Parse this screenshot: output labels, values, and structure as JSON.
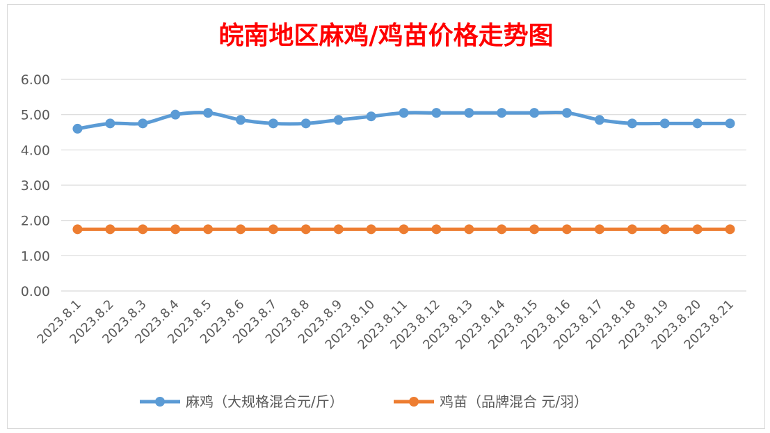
{
  "chart_data": {
    "type": "line",
    "title": "皖南地区麻鸡/鸡苗价格走势图",
    "categories": [
      "2023.8.1",
      "2023.8.2",
      "2023.8.3",
      "2023.8.4",
      "2023.8.5",
      "2023.8.6",
      "2023.8.7",
      "2023.8.8",
      "2023.8.9",
      "2023.8.10",
      "2023.8.11",
      "2023.8.12",
      "2023.8.13",
      "2023.8.14",
      "2023.8.15",
      "2023.8.16",
      "2023.8.17",
      "2023.8.18",
      "2023.8.19",
      "2023.8.20",
      "2023.8.21"
    ],
    "series": [
      {
        "name": "麻鸡（大规格混合元/斤）",
        "color": "#5b9bd5",
        "values": [
          4.6,
          4.75,
          4.75,
          5.0,
          5.05,
          4.85,
          4.75,
          4.75,
          4.85,
          4.95,
          5.05,
          5.05,
          5.05,
          5.05,
          5.05,
          5.05,
          4.85,
          4.75,
          4.75,
          4.75,
          4.75
        ]
      },
      {
        "name": "鸡苗（品牌混合 元/羽）",
        "color": "#ed7d31",
        "values": [
          1.75,
          1.75,
          1.75,
          1.75,
          1.75,
          1.75,
          1.75,
          1.75,
          1.75,
          1.75,
          1.75,
          1.75,
          1.75,
          1.75,
          1.75,
          1.75,
          1.75,
          1.75,
          1.75,
          1.75,
          1.75
        ]
      }
    ],
    "yticks": [
      "0.00",
      "1.00",
      "2.00",
      "3.00",
      "4.00",
      "5.00",
      "6.00"
    ],
    "ylim": [
      0,
      6
    ],
    "grid": true,
    "legend_position": "bottom",
    "title_color": "#ff0000",
    "axis_text_color": "#595959",
    "grid_color": "#d9d9d9"
  }
}
